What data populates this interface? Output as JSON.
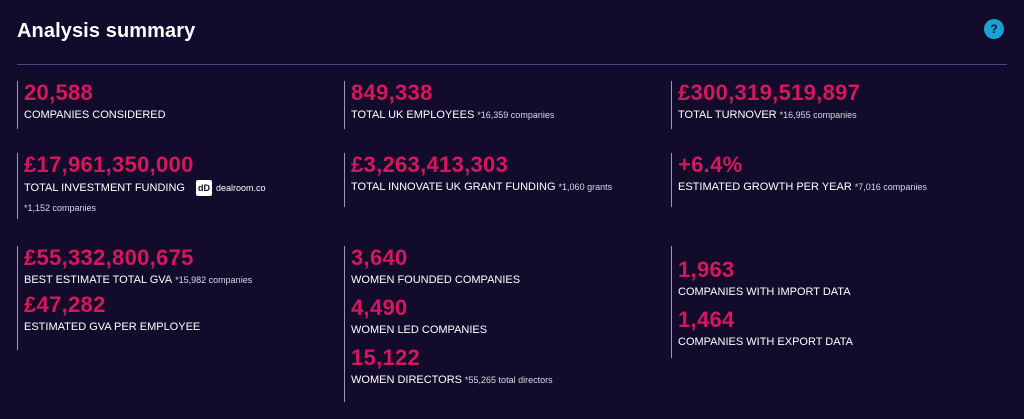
{
  "header": {
    "title": "Analysis summary",
    "help_glyph": "?"
  },
  "colors": {
    "background": "#130b2b",
    "accent": "#d6175e",
    "help": "#1aa3d2"
  },
  "stats": {
    "companies": {
      "value": "20,588",
      "label": "COMPANIES CONSIDERED"
    },
    "uk_employees": {
      "value": "849,338",
      "label": "TOTAL UK EMPLOYEES",
      "note": "*16,359 companies"
    },
    "turnover": {
      "value": "£300,319,519,897",
      "label": "TOTAL TURNOVER",
      "note": "*16,955 companies"
    },
    "investment": {
      "value": "£17,961,350,000",
      "label": "TOTAL INVESTMENT FUNDING",
      "logo_mark": "dD",
      "logo_text": "dealroom.co",
      "note": "*1,152 companies"
    },
    "grant": {
      "value": "£3,263,413,303",
      "label": "TOTAL INNOVATE UK GRANT FUNDING",
      "note": "*1,060 grants"
    },
    "growth": {
      "value": "+6.4%",
      "label": "ESTIMATED GROWTH PER YEAR",
      "note": "*7,016 companies"
    },
    "gva_total": {
      "value": "£55,332,800,675",
      "label": "BEST ESTIMATE TOTAL GVA",
      "note": "*15,982 companies"
    },
    "gva_per_employee": {
      "value": "£47,282",
      "label": "ESTIMATED GVA PER EMPLOYEE"
    },
    "women_founded": {
      "value": "3,640",
      "label": "WOMEN FOUNDED COMPANIES"
    },
    "women_led": {
      "value": "4,490",
      "label": "WOMEN LED COMPANIES"
    },
    "women_directors": {
      "value": "15,122",
      "label": "WOMEN DIRECTORS",
      "note": "*55,265 total directors"
    },
    "import": {
      "value": "1,963",
      "label": "COMPANIES WITH IMPORT DATA"
    },
    "export": {
      "value": "1,464",
      "label": "COMPANIES WITH EXPORT DATA"
    }
  }
}
